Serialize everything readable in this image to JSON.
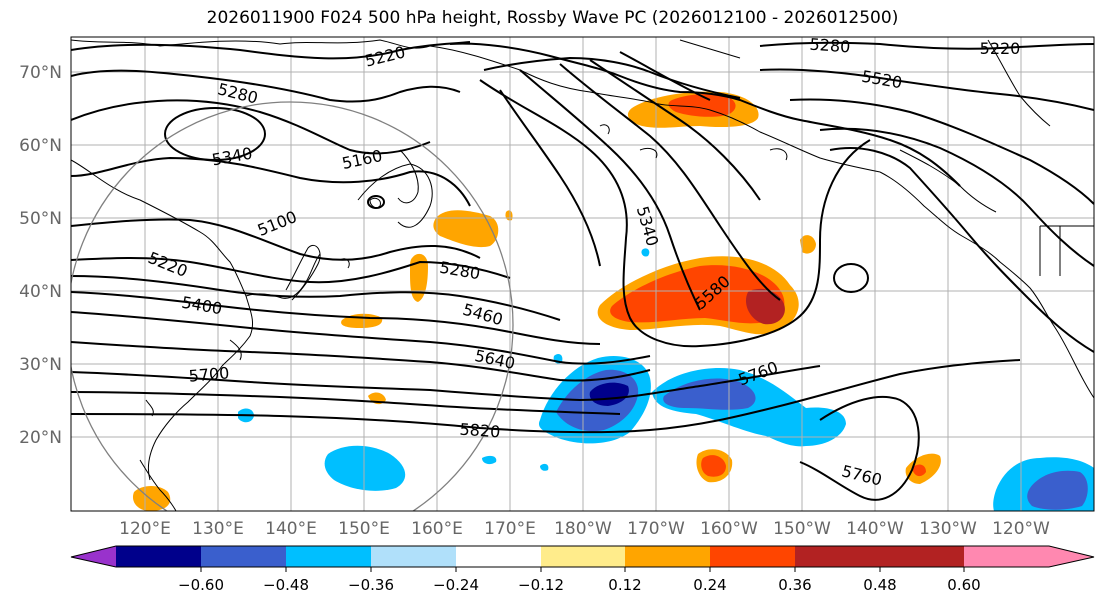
{
  "title": "2026011900 F024 500 hPa height, Rossby Wave PC (2026012100 - 2026012500)",
  "lat_labels": [
    "70°N",
    "60°N",
    "50°N",
    "40°N",
    "30°N",
    "20°N"
  ],
  "lon_labels": [
    "120°E",
    "130°E",
    "140°E",
    "150°E",
    "160°E",
    "170°E",
    "180°W",
    "170°W",
    "160°W",
    "150°W",
    "140°W",
    "130°W",
    "120°W"
  ],
  "contour_labels": [
    "5220",
    "5280",
    "5220",
    "5280",
    "5340",
    "5160",
    "5520",
    "5100",
    "5340",
    "5220",
    "5280",
    "5400",
    "5580",
    "5460",
    "5640",
    "5700",
    "5760",
    "5820",
    "5760"
  ],
  "colorbar": {
    "ticks": [
      "−0.60",
      "−0.48",
      "−0.36",
      "−0.24",
      "−0.12",
      "0.12",
      "0.24",
      "0.36",
      "0.48",
      "0.60"
    ],
    "colors": [
      "#9932cc",
      "#00008b",
      "#3a5fcd",
      "#00bfff",
      "#b0e0fa",
      "#ffffff",
      "#ffec8b",
      "#ffa500",
      "#ff4500",
      "#b22222",
      "#ff88b0"
    ]
  }
}
